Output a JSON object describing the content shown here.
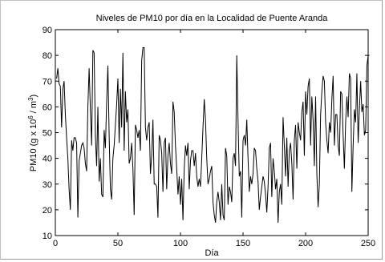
{
  "chart_data": {
    "type": "line",
    "title": "Niveles de PM10 por día en la Localidad de Puente Aranda",
    "xlabel": "Día",
    "ylabel_main": "PM10 (g x 10",
    "ylabel_exp": "6",
    "ylabel_mid": " / m",
    "ylabel_exp2": "3",
    "ylabel_end": ")",
    "xlim": [
      0,
      250
    ],
    "ylim": [
      10,
      90
    ],
    "xticks": [
      0,
      50,
      100,
      150,
      200,
      250
    ],
    "yticks": [
      10,
      20,
      30,
      40,
      50,
      60,
      70,
      80,
      90
    ],
    "grid": false,
    "line_color": "#000000",
    "series": [
      {
        "x_start": 1,
        "x_step": 1,
        "values": [
          71,
          75,
          69,
          68,
          52,
          67,
          70,
          57,
          48,
          40,
          28,
          20,
          47,
          43,
          48,
          48,
          46,
          17,
          39,
          42,
          45,
          46,
          44,
          38,
          35,
          60,
          75,
          59,
          45,
          82,
          81,
          49,
          37,
          60,
          31,
          40,
          26,
          25,
          51,
          44,
          62,
          76,
          49,
          28,
          24,
          40,
          45,
          53,
          61,
          71,
          46,
          67,
          52,
          81,
          43,
          66,
          54,
          59,
          38,
          40,
          46,
          36,
          18,
          53,
          51,
          48,
          51,
          43,
          78,
          83,
          83,
          52,
          47,
          52,
          54,
          34,
          41,
          55,
          30,
          30,
          29,
          17,
          49,
          47,
          42,
          27,
          46,
          48,
          28,
          41,
          46,
          38,
          34,
          62,
          58,
          45,
          36,
          26,
          33,
          22,
          32,
          16,
          36,
          45,
          41,
          46,
          28,
          39,
          43,
          43,
          37,
          42,
          33,
          29,
          32,
          29,
          40,
          52,
          63,
          55,
          40,
          30,
          32,
          35,
          37,
          23,
          18,
          15,
          23,
          27,
          23,
          16,
          30,
          18,
          16,
          44,
          41,
          22,
          29,
          27,
          23,
          40,
          42,
          37,
          80,
          55,
          33,
          35,
          17,
          47,
          49,
          45,
          55,
          40,
          27,
          33,
          30,
          34,
          44,
          43,
          36,
          31,
          20,
          25,
          29,
          33,
          31,
          26,
          19,
          29,
          44,
          46,
          25,
          40,
          35,
          28,
          32,
          15,
          27,
          30,
          22,
          56,
          45,
          33,
          48,
          29,
          43,
          46,
          38,
          24,
          47,
          53,
          36,
          54,
          50,
          47,
          58,
          62,
          41,
          66,
          57,
          68,
          71,
          45,
          64,
          55,
          37,
          64,
          34,
          21,
          30,
          57,
          66,
          72,
          70,
          54,
          47,
          42,
          54,
          50,
          63,
          72,
          45,
          57,
          57,
          45,
          41,
          66,
          65,
          49,
          36,
          54,
          64,
          56,
          73,
          71,
          27,
          45,
          59,
          54,
          73,
          46,
          59,
          70,
          58,
          61,
          49,
          51,
          76,
          80,
          80
        ]
      }
    ]
  }
}
